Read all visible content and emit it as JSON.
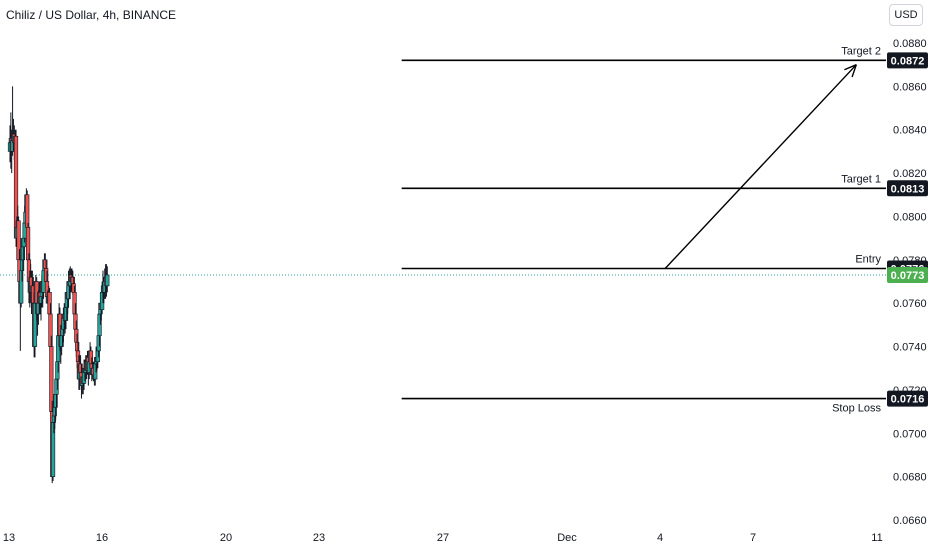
{
  "header": {
    "title": "Chiliz / US Dollar, 4h, BINANCE",
    "currency_button": "USD"
  },
  "chart_data": {
    "type": "candlestick",
    "title": "Chiliz / US Dollar, 4h, BINANCE",
    "ylim": [
      0.066,
      0.088
    ],
    "y_ticks": [
      "0.0880",
      "0.0860",
      "0.0840",
      "0.0820",
      "0.0800",
      "0.0780",
      "0.0760",
      "0.0740",
      "0.0720",
      "0.0700",
      "0.0680",
      "0.0660"
    ],
    "x_ticks": [
      {
        "label": "13",
        "x": 0
      },
      {
        "label": "16",
        "x": 18
      },
      {
        "label": "20",
        "x": 42
      },
      {
        "label": "23",
        "x": 60
      },
      {
        "label": "27",
        "x": 84
      },
      {
        "label": "Dec",
        "x": 108
      },
      {
        "label": "4",
        "x": 126
      },
      {
        "label": "7",
        "x": 144
      },
      {
        "label": "11",
        "x": 168
      }
    ],
    "levels": [
      {
        "name": "Target 2",
        "value": 0.0872,
        "x_start": 76
      },
      {
        "name": "Target 1",
        "value": 0.0813,
        "x_start": 76
      },
      {
        "name": "Entry",
        "value": 0.0776,
        "x_start": 76
      },
      {
        "name": "Stop Loss",
        "value": 0.0716,
        "x_start": 76
      }
    ],
    "last_price": 0.0773,
    "arrow": {
      "from": {
        "x": 127,
        "value": 0.0776
      },
      "to": {
        "x": 164,
        "value": 0.087
      }
    },
    "candles": [
      [
        0.083,
        0.0834,
        0.0842,
        0.0825
      ],
      [
        0.0834,
        0.0836,
        0.0848,
        0.0822
      ],
      [
        0.0836,
        0.083,
        0.084,
        0.082
      ],
      [
        0.083,
        0.0835,
        0.086,
        0.0828
      ],
      [
        0.0835,
        0.0838,
        0.0845,
        0.083
      ],
      [
        0.0838,
        0.0834,
        0.0842,
        0.0826
      ],
      [
        0.0834,
        0.0837,
        0.084,
        0.083
      ],
      [
        0.0837,
        0.079,
        0.084,
        0.0786
      ],
      [
        0.079,
        0.0795,
        0.08,
        0.078
      ],
      [
        0.0795,
        0.0798,
        0.0805,
        0.0788
      ],
      [
        0.0798,
        0.078,
        0.08,
        0.0775
      ],
      [
        0.078,
        0.077,
        0.0785,
        0.0765
      ],
      [
        0.077,
        0.076,
        0.0775,
        0.0738
      ],
      [
        0.076,
        0.0775,
        0.079,
        0.0758
      ],
      [
        0.0775,
        0.078,
        0.0785,
        0.077
      ],
      [
        0.078,
        0.0786,
        0.079,
        0.0775
      ],
      [
        0.0786,
        0.079,
        0.0795,
        0.078
      ],
      [
        0.079,
        0.0797,
        0.0805,
        0.0788
      ],
      [
        0.0797,
        0.0802,
        0.0808,
        0.0795
      ],
      [
        0.0802,
        0.081,
        0.0813,
        0.08
      ],
      [
        0.081,
        0.0795,
        0.0812,
        0.0792
      ],
      [
        0.0795,
        0.078,
        0.0797,
        0.0778
      ],
      [
        0.078,
        0.077,
        0.0783,
        0.076
      ],
      [
        0.077,
        0.0765,
        0.0775,
        0.0758
      ],
      [
        0.0765,
        0.0772,
        0.0778,
        0.076
      ],
      [
        0.0772,
        0.0765,
        0.0775,
        0.0755
      ],
      [
        0.0765,
        0.0768,
        0.0775,
        0.076
      ],
      [
        0.0768,
        0.076,
        0.0772,
        0.0745
      ],
      [
        0.076,
        0.074,
        0.0765,
        0.0735
      ],
      [
        0.074,
        0.076,
        0.0765,
        0.0735
      ],
      [
        0.076,
        0.077,
        0.0773,
        0.0755
      ],
      [
        0.077,
        0.076,
        0.0772,
        0.0752
      ],
      [
        0.076,
        0.0755,
        0.0765,
        0.0745
      ],
      [
        0.0755,
        0.076,
        0.0766,
        0.075
      ],
      [
        0.076,
        0.0765,
        0.077,
        0.0755
      ],
      [
        0.0765,
        0.076,
        0.077,
        0.0755
      ],
      [
        0.076,
        0.0763,
        0.0768,
        0.0752
      ],
      [
        0.0763,
        0.077,
        0.0773,
        0.0758
      ],
      [
        0.077,
        0.0765,
        0.0772,
        0.0758
      ],
      [
        0.0765,
        0.0775,
        0.078,
        0.0762
      ],
      [
        0.0775,
        0.078,
        0.0783,
        0.077
      ],
      [
        0.078,
        0.0776,
        0.0783,
        0.077
      ],
      [
        0.0776,
        0.077,
        0.078,
        0.0765
      ],
      [
        0.077,
        0.0763,
        0.0775,
        0.076
      ],
      [
        0.0763,
        0.076,
        0.0766,
        0.0755
      ],
      [
        0.076,
        0.0765,
        0.0768,
        0.0758
      ],
      [
        0.0765,
        0.0755,
        0.0767,
        0.075
      ],
      [
        0.0755,
        0.074,
        0.076,
        0.0725
      ],
      [
        0.074,
        0.071,
        0.0745,
        0.07
      ],
      [
        0.071,
        0.068,
        0.0715,
        0.0677
      ],
      [
        0.068,
        0.0705,
        0.071,
        0.0678
      ],
      [
        0.0705,
        0.0708,
        0.0715,
        0.07
      ],
      [
        0.0708,
        0.0712,
        0.0718,
        0.0702
      ],
      [
        0.0712,
        0.0718,
        0.0725,
        0.0706
      ],
      [
        0.0718,
        0.0725,
        0.073,
        0.0712
      ],
      [
        0.0725,
        0.0733,
        0.0738,
        0.072
      ],
      [
        0.0733,
        0.0745,
        0.0748,
        0.0728
      ],
      [
        0.0745,
        0.0755,
        0.076,
        0.074
      ],
      [
        0.0755,
        0.0745,
        0.0758,
        0.0738
      ],
      [
        0.0745,
        0.074,
        0.075,
        0.0732
      ],
      [
        0.074,
        0.0745,
        0.075,
        0.0736
      ],
      [
        0.0745,
        0.0748,
        0.0755,
        0.074
      ],
      [
        0.0748,
        0.0753,
        0.0758,
        0.0742
      ],
      [
        0.0753,
        0.0755,
        0.076,
        0.0748
      ],
      [
        0.0755,
        0.0752,
        0.076,
        0.0746
      ],
      [
        0.0752,
        0.0758,
        0.0763,
        0.0748
      ],
      [
        0.0758,
        0.0765,
        0.0768,
        0.0752
      ],
      [
        0.0765,
        0.0762,
        0.077,
        0.0755
      ],
      [
        0.0762,
        0.077,
        0.0775,
        0.0758
      ],
      [
        0.077,
        0.0768,
        0.0776,
        0.0762
      ],
      [
        0.0768,
        0.0773,
        0.0777,
        0.0765
      ],
      [
        0.0773,
        0.077,
        0.0776,
        0.0765
      ],
      [
        0.077,
        0.0772,
        0.0776,
        0.0766
      ],
      [
        0.0772,
        0.0769,
        0.0775,
        0.0764
      ],
      [
        0.0769,
        0.0765,
        0.0772,
        0.0758
      ],
      [
        0.0765,
        0.0755,
        0.0768,
        0.075
      ],
      [
        0.0755,
        0.0748,
        0.076,
        0.0742
      ],
      [
        0.0748,
        0.0742,
        0.0752,
        0.0735
      ],
      [
        0.0742,
        0.0738,
        0.0746,
        0.073
      ],
      [
        0.0738,
        0.0733,
        0.0742,
        0.0726
      ],
      [
        0.0733,
        0.0725,
        0.0736,
        0.072
      ],
      [
        0.0725,
        0.0732,
        0.0736,
        0.072
      ],
      [
        0.0732,
        0.0728,
        0.0736,
        0.0722
      ],
      [
        0.0728,
        0.0722,
        0.0732,
        0.0716
      ],
      [
        0.0722,
        0.0726,
        0.073,
        0.0718
      ],
      [
        0.0726,
        0.0723,
        0.073,
        0.0718
      ],
      [
        0.0723,
        0.073,
        0.0734,
        0.072
      ],
      [
        0.073,
        0.0728,
        0.0734,
        0.0724
      ],
      [
        0.0728,
        0.0733,
        0.0736,
        0.0725
      ],
      [
        0.0733,
        0.0729,
        0.0736,
        0.0725
      ],
      [
        0.0729,
        0.0735,
        0.0738,
        0.0727
      ],
      [
        0.0735,
        0.0728,
        0.0738,
        0.0722
      ],
      [
        0.0728,
        0.0733,
        0.0736,
        0.0725
      ],
      [
        0.0733,
        0.0738,
        0.0742,
        0.073
      ],
      [
        0.0738,
        0.0732,
        0.074,
        0.0728
      ],
      [
        0.0732,
        0.0727,
        0.0735,
        0.0724
      ],
      [
        0.0727,
        0.073,
        0.0733,
        0.0725
      ],
      [
        0.073,
        0.0727,
        0.0733,
        0.0724
      ],
      [
        0.0727,
        0.0725,
        0.073,
        0.0722
      ],
      [
        0.0725,
        0.0732,
        0.0735,
        0.0722
      ],
      [
        0.0732,
        0.0735,
        0.074,
        0.0728
      ],
      [
        0.0735,
        0.0733,
        0.0738,
        0.0729
      ],
      [
        0.0733,
        0.0738,
        0.0742,
        0.073
      ],
      [
        0.0738,
        0.0745,
        0.0748,
        0.0735
      ],
      [
        0.0745,
        0.0755,
        0.0758,
        0.074
      ],
      [
        0.0755,
        0.076,
        0.0765,
        0.075
      ],
      [
        0.076,
        0.0757,
        0.0764,
        0.0752
      ],
      [
        0.0757,
        0.0765,
        0.077,
        0.0755
      ],
      [
        0.0765,
        0.0768,
        0.0775,
        0.076
      ],
      [
        0.0768,
        0.0765,
        0.0772,
        0.076
      ],
      [
        0.0765,
        0.077,
        0.0776,
        0.0762
      ],
      [
        0.077,
        0.0772,
        0.0778,
        0.0762
      ],
      [
        0.0772,
        0.0768,
        0.0778,
        0.0763
      ],
      [
        0.0768,
        0.0773,
        0.0777,
        0.0765
      ]
    ]
  }
}
